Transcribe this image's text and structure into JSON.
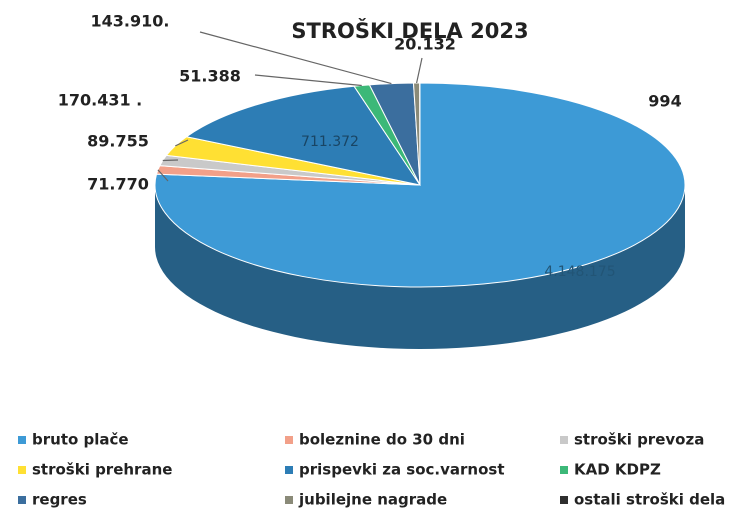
{
  "chart_data": {
    "type": "pie",
    "title": "STROŠKI DELA 2023",
    "categories": [
      "bruto plače",
      "boleznine do  30 dni",
      "stroški prevoza",
      "stroški prehrane",
      "prispevki za soc.varnost",
      "KAD KDPZ",
      "regres",
      "jubilejne nagrade",
      "ostali stroški dela"
    ],
    "values": [
      4148175,
      71770,
      89755,
      170431,
      711372,
      51388,
      143910,
      20132,
      994
    ],
    "value_labels": [
      "4.148.175",
      "71.770",
      "89.755",
      "170.431 .",
      "711.372",
      "51.388",
      "143.910.",
      "20.132",
      "994"
    ],
    "colors": [
      "#3d9ad6",
      "#f2a089",
      "#c9c9c9",
      "#ffe033",
      "#2d7db5",
      "#3cb878",
      "#3b6e9e",
      "#8a8a78",
      "#2e2e2e"
    ]
  }
}
